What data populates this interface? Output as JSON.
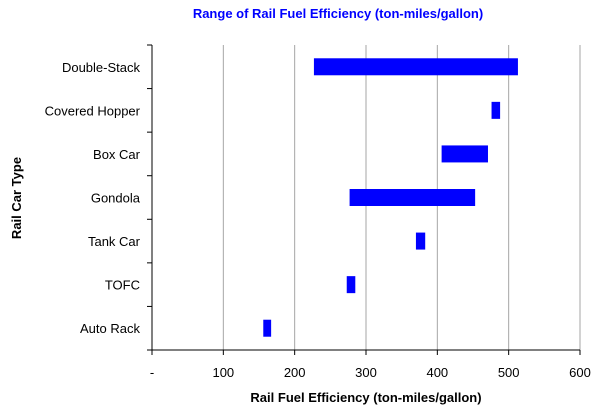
{
  "chart_data": {
    "type": "bar",
    "orientation": "horizontal-floating-range",
    "title": "Range of Rail Fuel Efficiency (ton-miles/gallon)",
    "xlabel": "Rail Fuel Efficiency (ton-miles/gallon)",
    "ylabel": "Rail Car Type",
    "x_tick_labels": [
      "-",
      "100",
      "200",
      "300",
      "400",
      "500",
      "600"
    ],
    "x_ticks": [
      0,
      100,
      200,
      300,
      400,
      500,
      600
    ],
    "xlim": [
      0,
      600
    ],
    "grid": "vertical",
    "legend": "none",
    "categories": [
      "Double-Stack",
      "Covered Hopper",
      "Box Car",
      "Gondola",
      "Tank Car",
      "TOFC",
      "Auto Rack"
    ],
    "ranges": [
      [
        227,
        513
      ],
      [
        476,
        488
      ],
      [
        406,
        471
      ],
      [
        277,
        453
      ],
      [
        370,
        383
      ],
      [
        273,
        285
      ],
      [
        156,
        167
      ]
    ],
    "colors": {
      "bar": "#0000FF",
      "title": "#0000FF",
      "grid": "#A6A6A6",
      "axis": "#000000"
    }
  }
}
